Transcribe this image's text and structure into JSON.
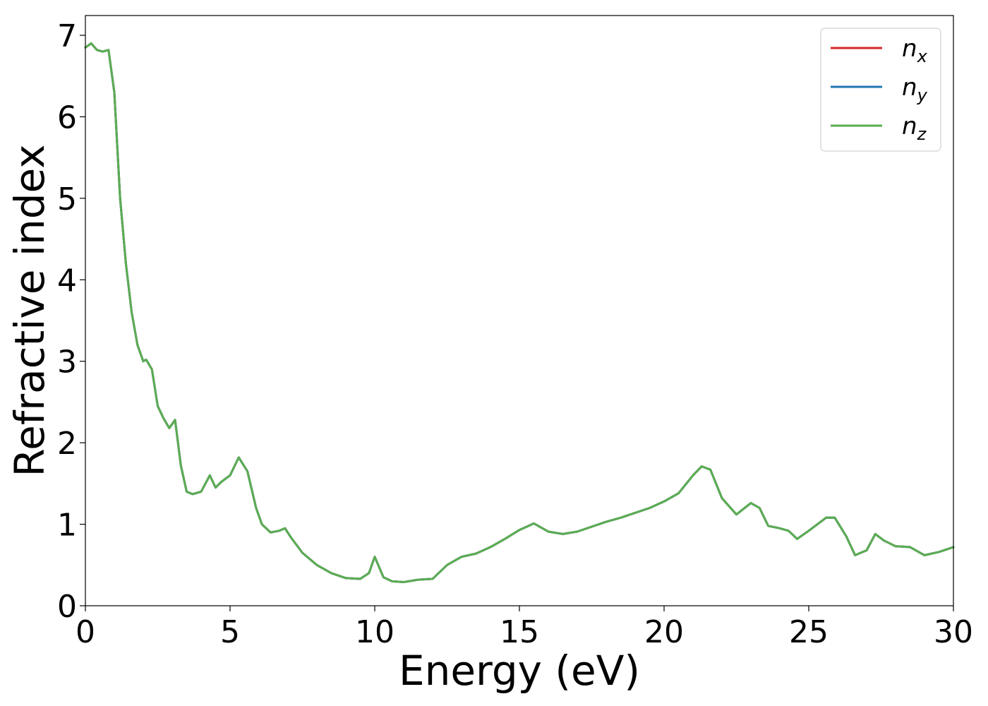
{
  "chart_data": {
    "type": "line",
    "title": "",
    "xlabel": "Energy (eV)",
    "ylabel": "Refractive index",
    "xlim": [
      0,
      30
    ],
    "ylim": [
      0,
      7.3
    ],
    "xticks": [
      0,
      5,
      10,
      15,
      20,
      25,
      30
    ],
    "yticks": [
      0,
      1,
      2,
      3,
      4,
      5,
      6,
      7
    ],
    "xtick_labels": [
      "0",
      "5",
      "10",
      "15",
      "20",
      "25",
      "30"
    ],
    "ytick_labels": [
      "0",
      "1",
      "2",
      "3",
      "4",
      "5",
      "6",
      "7"
    ],
    "grid": false,
    "legend_position": "top-right",
    "series": [
      {
        "name": "n",
        "subscript": "x",
        "color": "#d62728"
      },
      {
        "name": "n",
        "subscript": "y",
        "color": "#1f77b4"
      },
      {
        "name": "n",
        "subscript": "z",
        "color": "#5aad52"
      }
    ],
    "x": [
      0,
      0.2,
      0.4,
      0.6,
      0.8,
      1.0,
      1.2,
      1.4,
      1.6,
      1.8,
      2.0,
      2.1,
      2.3,
      2.5,
      2.7,
      2.9,
      3.1,
      3.3,
      3.5,
      3.7,
      4.0,
      4.3,
      4.5,
      4.7,
      5.0,
      5.3,
      5.6,
      5.9,
      6.1,
      6.4,
      6.7,
      6.9,
      7.1,
      7.5,
      8.0,
      8.5,
      9.0,
      9.5,
      9.8,
      10.0,
      10.3,
      10.6,
      11.0,
      11.5,
      12.0,
      12.5,
      13.0,
      13.5,
      14.0,
      14.5,
      15.0,
      15.5,
      16.0,
      16.5,
      17.0,
      17.5,
      18.0,
      18.5,
      19.0,
      19.5,
      20.0,
      20.5,
      21.0,
      21.3,
      21.6,
      22.0,
      22.5,
      23.0,
      23.3,
      23.6,
      24.0,
      24.3,
      24.6,
      25.0,
      25.3,
      25.6,
      25.9,
      26.3,
      26.6,
      27.0,
      27.3,
      27.6,
      28.0,
      28.5,
      29.0,
      29.5,
      30.0
    ],
    "n_values": [
      6.85,
      6.9,
      6.82,
      6.8,
      6.82,
      6.3,
      5.0,
      4.2,
      3.6,
      3.2,
      3.0,
      3.02,
      2.9,
      2.45,
      2.3,
      2.18,
      2.28,
      1.72,
      1.4,
      1.37,
      1.4,
      1.6,
      1.45,
      1.52,
      1.6,
      1.82,
      1.65,
      1.2,
      1.0,
      0.9,
      0.92,
      0.95,
      0.84,
      0.65,
      0.5,
      0.4,
      0.34,
      0.33,
      0.4,
      0.6,
      0.35,
      0.3,
      0.29,
      0.32,
      0.33,
      0.5,
      0.6,
      0.64,
      0.72,
      0.82,
      0.93,
      1.01,
      0.91,
      0.88,
      0.91,
      0.97,
      1.03,
      1.08,
      1.14,
      1.2,
      1.28,
      1.38,
      1.6,
      1.71,
      1.67,
      1.32,
      1.12,
      1.26,
      1.2,
      0.98,
      0.95,
      0.92,
      0.82,
      0.92,
      1.0,
      1.08,
      1.08,
      0.85,
      0.62,
      0.68,
      0.88,
      0.8,
      0.73,
      0.72,
      0.62,
      0.66,
      0.72
    ]
  }
}
